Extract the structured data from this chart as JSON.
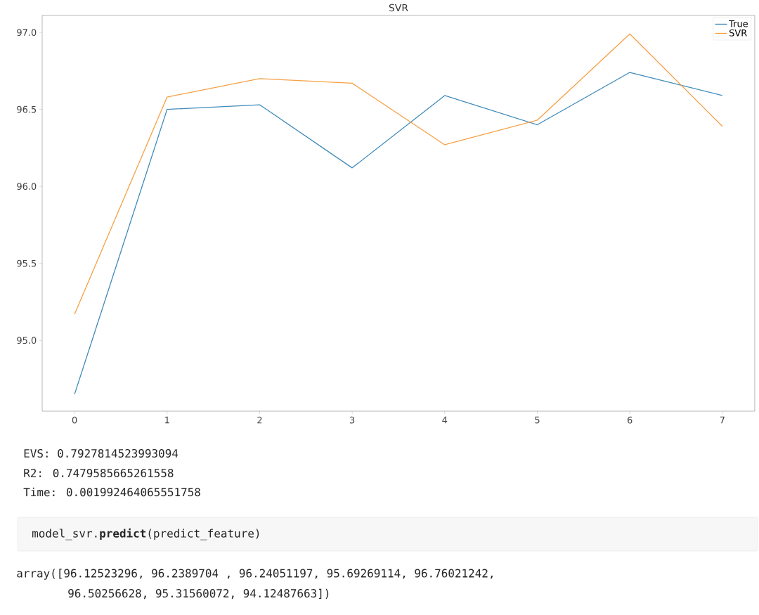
{
  "chart_data": {
    "type": "line",
    "title": "SVR",
    "x": [
      0,
      1,
      2,
      3,
      4,
      5,
      6,
      7
    ],
    "series": [
      {
        "name": "True",
        "color": "#3f8ab9",
        "values": [
          94.65,
          96.5,
          96.53,
          96.12,
          96.59,
          96.4,
          96.74,
          96.59
        ]
      },
      {
        "name": "SVR",
        "color": "#f5a043",
        "values": [
          95.17,
          96.58,
          96.7,
          96.67,
          96.27,
          96.43,
          96.99,
          96.39
        ]
      }
    ],
    "xlim": [
      -0.35,
      7.35
    ],
    "ylim": [
      94.54,
      97.11
    ],
    "xticks": [
      0,
      1,
      2,
      3,
      4,
      5,
      6,
      7
    ],
    "yticks": [
      {
        "value": 95,
        "label": "95.0"
      },
      {
        "value": 95.5,
        "label": "95.5"
      },
      {
        "value": 96,
        "label": "96.0"
      },
      {
        "value": 96.5,
        "label": "96.5"
      },
      {
        "value": 97,
        "label": "97.0"
      }
    ],
    "legend": "top right",
    "grid": false,
    "marker": "none",
    "line_style": "solid",
    "annotations": [
      "EVS: 0.7927814523993094",
      "R2: 0.7479585665261558",
      "Time: 0.001992464065551758",
      "model_svr.**predict**(predict_feature)",
      "array([96.12523296, 96.2389704 , 96.24051197, 95.69269114, 96.76021242,",
      "96.50256628, 95.31560072, 94.12487663])"
    ]
  }
}
